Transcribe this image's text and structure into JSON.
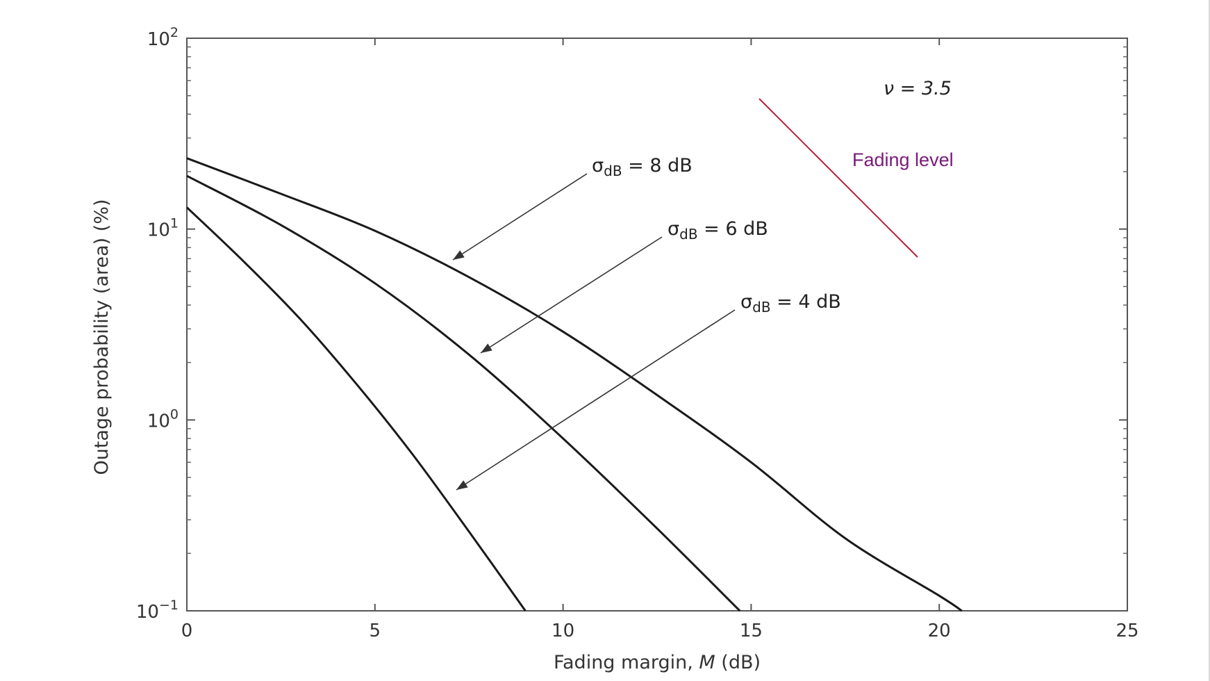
{
  "chart_data": {
    "type": "line",
    "title": "",
    "xlabel_prefix": "Fading margin, ",
    "xlabel_var": "M",
    "xlabel_suffix": " (dB)",
    "ylabel": "Outage probability (area) (%)",
    "xlim": [
      0,
      25
    ],
    "ylim": [
      0.1,
      100
    ],
    "yscale": "log",
    "grid": false,
    "xticks": [
      0,
      5,
      10,
      15,
      20,
      25
    ],
    "xtick_labels": [
      "0",
      "5",
      "10",
      "15",
      "20",
      "25"
    ],
    "yticks": [
      0.1,
      1,
      10,
      100
    ],
    "ytick_bases": [
      "10",
      "10",
      "10",
      "10"
    ],
    "ytick_exps": [
      "−1",
      "0",
      "1",
      "2"
    ],
    "series": [
      {
        "name": "σdB = 8 dB",
        "label_sigma": "σ",
        "label_sub": "dB",
        "label_rest": " = 8 dB",
        "x": [
          0,
          2.5,
          5,
          7.5,
          10,
          12.5,
          15,
          17.5,
          20,
          20.6
        ],
        "y": [
          23.5,
          15.3,
          9.8,
          5.6,
          2.9,
          1.35,
          0.6,
          0.24,
          0.12,
          0.1
        ]
      },
      {
        "name": "σdB = 6 dB",
        "label_sigma": "σ",
        "label_sub": "dB",
        "label_rest": " = 6 dB",
        "x": [
          0,
          2.5,
          5,
          7.5,
          10,
          12.5,
          14.7
        ],
        "y": [
          19,
          10.5,
          5.2,
          2.2,
          0.8,
          0.27,
          0.1
        ]
      },
      {
        "name": "σdB = 4 dB",
        "label_sigma": "σ",
        "label_sub": "dB",
        "label_rest": " = 4 dB",
        "x": [
          0,
          1.5,
          3,
          4.5,
          6,
          7.5,
          9
        ],
        "y": [
          13,
          6.8,
          3.4,
          1.55,
          0.66,
          0.26,
          0.1
        ]
      }
    ],
    "annotations": {
      "nu_label": "ν = 3.5",
      "fading_level": "Fading level",
      "fading_line_color": "#b0203a",
      "fading_text_color": "#7a1a7a"
    }
  }
}
